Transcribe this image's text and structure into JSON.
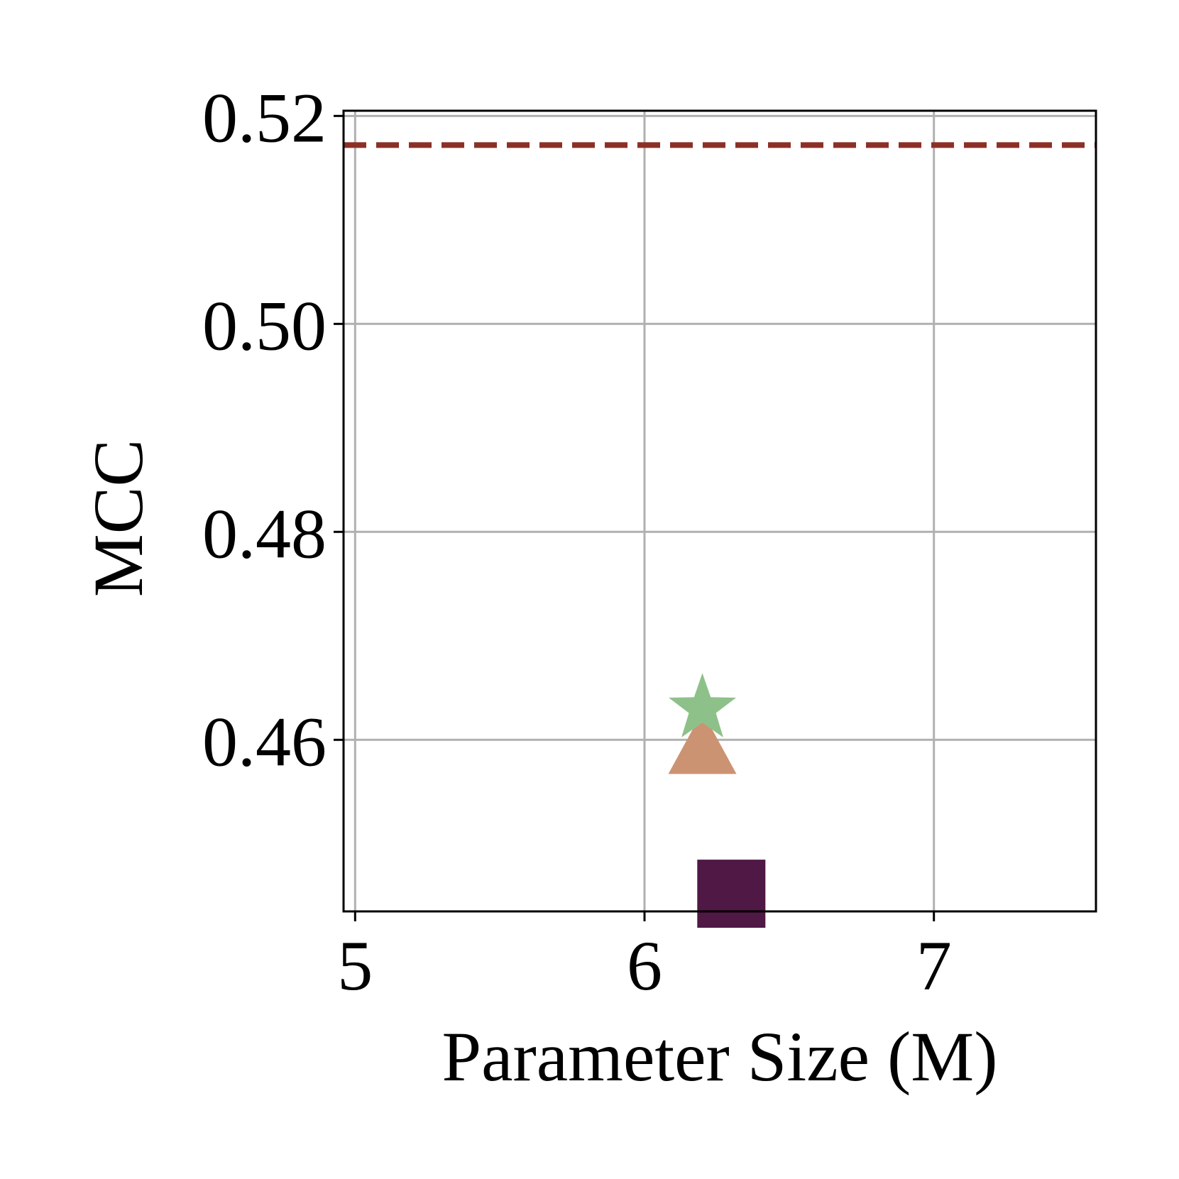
{
  "chart_data": {
    "type": "scatter",
    "xlabel": "Parameter Size (M)",
    "ylabel": "MCC",
    "xlim": [
      4.96,
      7.56
    ],
    "ylim": [
      0.4435,
      0.5205
    ],
    "x_ticks": [
      5,
      6,
      7
    ],
    "x_tick_labels": [
      "5",
      "6",
      "7"
    ],
    "y_ticks": [
      0.46,
      0.48,
      0.5,
      0.52
    ],
    "y_tick_labels": [
      "0.46",
      "0.48",
      "0.50",
      "0.52"
    ],
    "grid": true,
    "series": [
      {
        "marker": "square",
        "color": "#4f1845",
        "x": 6.3,
        "y": 0.4452
      },
      {
        "marker": "triangle",
        "color": "#cc9372",
        "x": 6.2,
        "y": 0.4589
      },
      {
        "marker": "star",
        "color": "#8ec18a",
        "x": 6.2,
        "y": 0.463
      }
    ],
    "reference_line": {
      "orientation": "horizontal",
      "style": "dashed",
      "color": "#8b3026",
      "y": 0.5172
    }
  }
}
